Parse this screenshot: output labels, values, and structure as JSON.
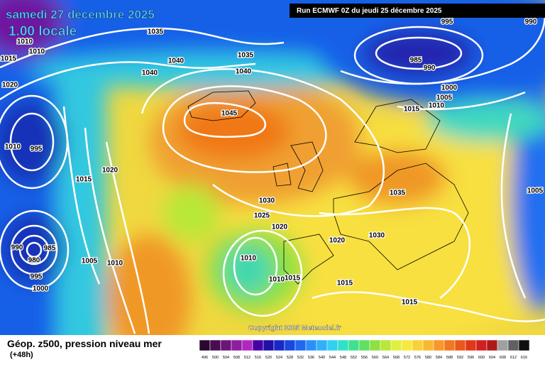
{
  "header": {
    "title": "samedi 27 décembre 2025",
    "subtitle": "1.00 locale",
    "run": "Run ECMWF 0Z du jeudi 25 décembre 2025"
  },
  "isobar_labels": [
    "1035",
    "1010",
    "1010",
    "1015",
    "1040",
    "1035",
    "1040",
    "1040",
    "1020",
    "1045",
    "1020",
    "1015",
    "995",
    "1010",
    "1030",
    "1025",
    "1020",
    "1030",
    "1020",
    "1035",
    "1010",
    "1005",
    "1010",
    "1015",
    "1010",
    "1015",
    "1015",
    "990",
    "985",
    "980",
    "995",
    "1000",
    "1005",
    "995",
    "990",
    "985",
    "990",
    "1000",
    "1005",
    "1010",
    "1015"
  ],
  "footer": {
    "legend_title": "Géop. z500, pression niveau mer",
    "lead_time": "(+48h)",
    "copyright": "Copyright 2025 Meteociel.fr"
  },
  "colorbar": {
    "labels": [
      "496",
      "500",
      "504",
      "508",
      "512",
      "516",
      "520",
      "524",
      "528",
      "532",
      "536",
      "540",
      "544",
      "548",
      "552",
      "556",
      "560",
      "564",
      "568",
      "572",
      "576",
      "580",
      "584",
      "588",
      "592",
      "596",
      "600",
      "604",
      "608",
      "612",
      "616"
    ],
    "colors": [
      "#2a0830",
      "#4a0c50",
      "#6c1478",
      "#8e1ea0",
      "#b028c0",
      "#4800a8",
      "#2010a8",
      "#1828c8",
      "#1848e0",
      "#2068f0",
      "#2890f8",
      "#30b0f8",
      "#30d0f0",
      "#30e0c8",
      "#40e090",
      "#60e060",
      "#90e040",
      "#b8e838",
      "#e0f040",
      "#f8e840",
      "#f8d038",
      "#f8b830",
      "#f89828",
      "#f07820",
      "#e85818",
      "#e03818",
      "#d02020",
      "#b01818",
      "#a0a0a0",
      "#606060",
      "#101010"
    ]
  }
}
